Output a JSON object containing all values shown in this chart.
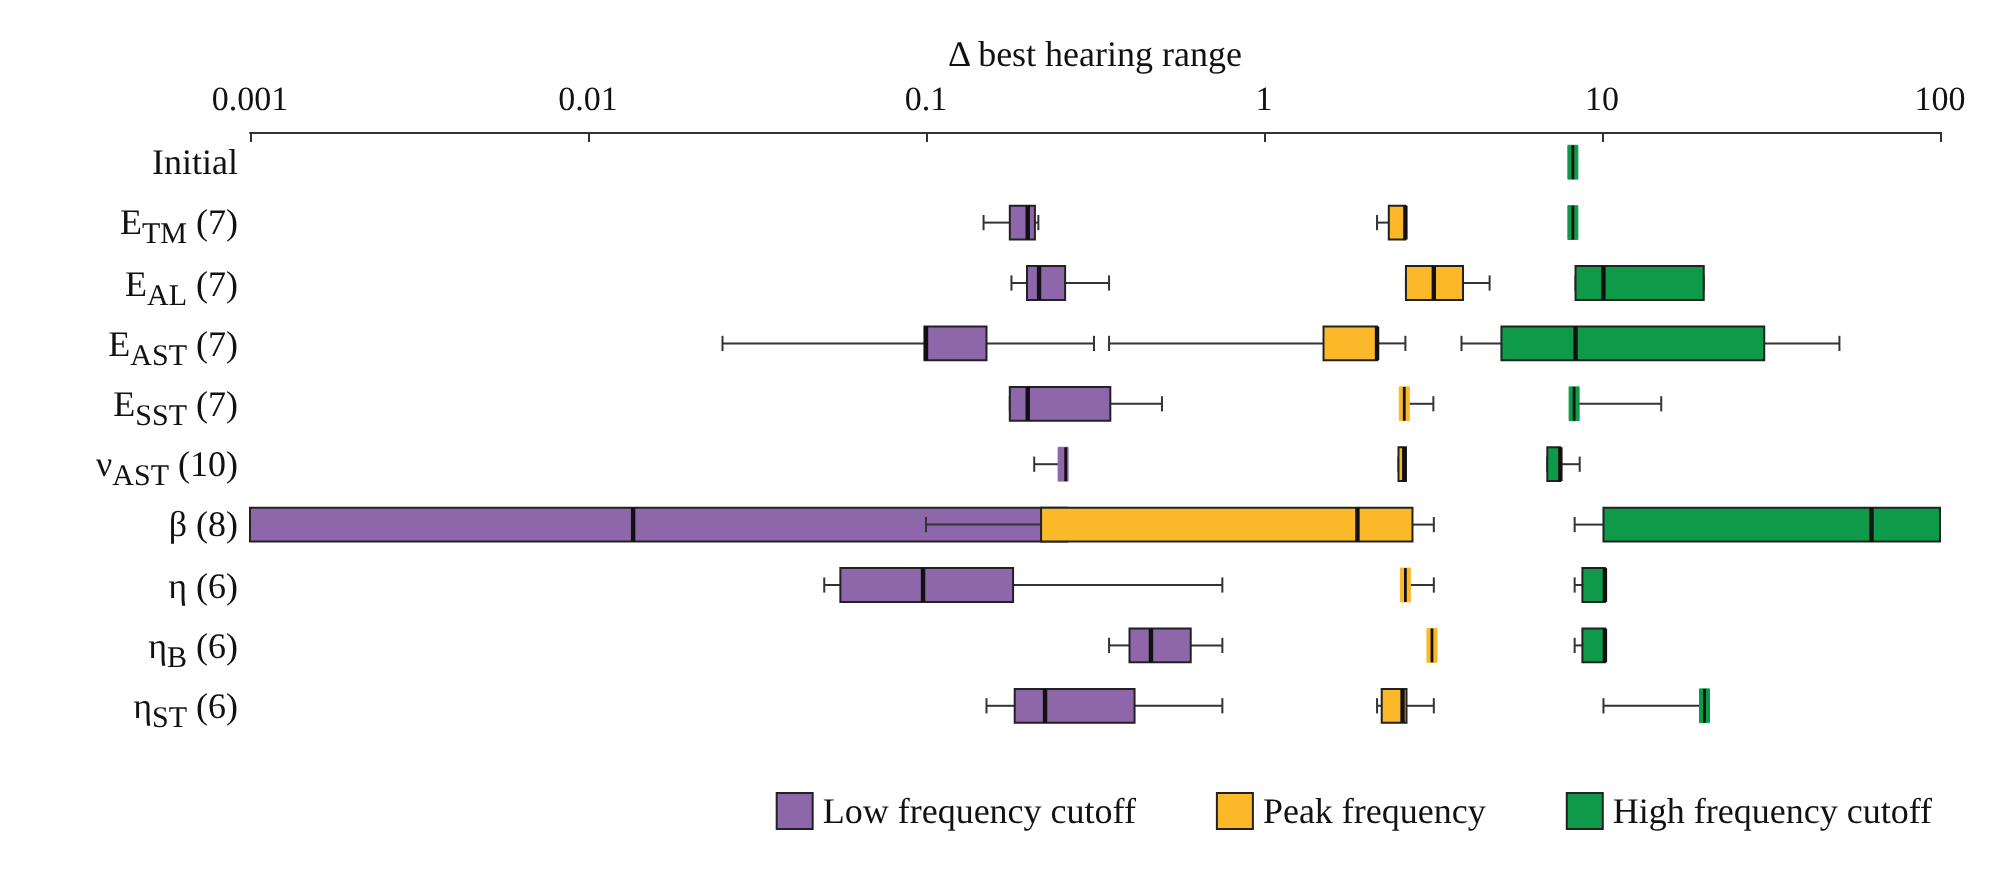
{
  "chart_data": {
    "type": "box",
    "orientation": "horizontal",
    "xlabel": "Δ best hearing range",
    "log": "x",
    "categories": [
      "Initial",
      "E$_{TM}$ (7)",
      "E$_{AL}$ (7)",
      "E$_{AST}$ (7)",
      "E$_{SST}$ (7)",
      "ν$_{AST}$ (10)",
      "β (8)",
      "η (6)",
      "η$_{B}$ (6)",
      "η$_{ST}$ (6)"
    ],
    "xlim": [
      0.001,
      100
    ],
    "xticks": [
      0.001,
      0.01,
      0.1,
      1,
      10,
      100
    ],
    "grid": false,
    "legend": "bottom right",
    "series": [
      {
        "name": "Low frequency cutoff",
        "color": "#8e67aa",
        "boxes": [
          null,
          {
            "low": 0.148,
            "q1": 0.177,
            "median": 0.2,
            "q3": 0.21,
            "high": 0.215
          },
          {
            "low": 0.179,
            "q1": 0.199,
            "median": 0.216,
            "q3": 0.258,
            "high": 0.348
          },
          {
            "low": 0.025,
            "q1": 0.099,
            "median": 0.1,
            "q3": 0.151,
            "high": 0.314
          },
          {
            "low": 0.177,
            "q1": 0.177,
            "median": 0.2,
            "q3": 0.351,
            "high": 0.499
          },
          {
            "low": 0.209,
            "q1": 0.25,
            "median": 0.259,
            "q3": 0.259,
            "high": 0.259
          },
          {
            "low": 0.001,
            "q1": 0.001,
            "median": 0.0136,
            "q3": 0.262,
            "high": 0.463
          },
          {
            "low": 0.05,
            "q1": 0.0558,
            "median": 0.098,
            "q3": 0.181,
            "high": 0.753
          },
          {
            "low": 0.348,
            "q1": 0.4,
            "median": 0.463,
            "q3": 0.607,
            "high": 0.753
          },
          {
            "low": 0.151,
            "q1": 0.183,
            "median": 0.225,
            "q3": 0.414,
            "high": 0.753
          }
        ]
      },
      {
        "name": "Peak frequency",
        "color": "#fbb829",
        "boxes": [
          null,
          {
            "low": 2.16,
            "q1": 2.34,
            "median": 2.62,
            "q3": 2.62,
            "high": 2.62
          },
          {
            "low": 2.63,
            "q1": 2.63,
            "median": 3.18,
            "q3": 3.88,
            "high": 4.65
          },
          {
            "low": 0.348,
            "q1": 1.5,
            "median": 2.16,
            "q3": 2.16,
            "high": 2.62
          },
          {
            "low": 2.6,
            "q1": 2.6,
            "median": 2.6,
            "q3": 2.6,
            "high": 3.17
          },
          {
            "low": 2.5,
            "q1": 2.5,
            "median": 2.6,
            "q3": 2.63,
            "high": 2.63
          },
          {
            "low": 0.1,
            "q1": 0.219,
            "median": 1.89,
            "q3": 2.75,
            "high": 3.18
          },
          {
            "low": 2.62,
            "q1": 2.62,
            "median": 2.62,
            "q3": 2.62,
            "high": 3.18
          },
          {
            "low": 3.14,
            "q1": 3.14,
            "median": 3.14,
            "q3": 3.14,
            "high": 3.14
          },
          {
            "low": 2.16,
            "q1": 2.23,
            "median": 2.57,
            "q3": 2.64,
            "high": 3.18
          }
        ]
      },
      {
        "name": "High frequency cutoff",
        "color": "#0f9a4a",
        "boxes": [
          {
            "low": 8.2,
            "q1": 8.2,
            "median": 8.2,
            "q3": 8.2,
            "high": 8.2
          },
          {
            "low": 8.2,
            "q1": 8.2,
            "median": 8.2,
            "q3": 8.2,
            "high": 8.2
          },
          {
            "low": 8.35,
            "q1": 8.35,
            "median": 10.1,
            "q3": 20,
            "high": 20
          },
          {
            "low": 3.84,
            "q1": 5.04,
            "median": 8.35,
            "q3": 30.2,
            "high": 50.4
          },
          {
            "low": 8.27,
            "q1": 8.27,
            "median": 8.27,
            "q3": 8.27,
            "high": 14.97
          },
          {
            "low": 6.89,
            "q1": 6.89,
            "median": 7.53,
            "q3": 7.53,
            "high": 8.59
          },
          {
            "low": 8.3,
            "q1": 10.1,
            "median": 62.7,
            "q3": 100,
            "high": 100
          },
          {
            "low": 8.3,
            "q1": 8.75,
            "median": 10.2,
            "q3": 10.2,
            "high": 10.2
          },
          {
            "low": 8.3,
            "q1": 8.75,
            "median": 10.2,
            "q3": 10.2,
            "high": 10.2
          },
          {
            "low": 10.1,
            "q1": 20.1,
            "median": 20.1,
            "q3": 20.1,
            "high": 20.1
          }
        ]
      }
    ]
  }
}
